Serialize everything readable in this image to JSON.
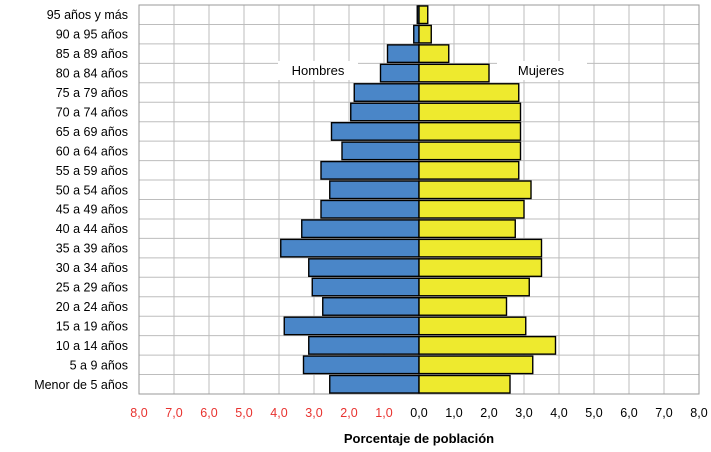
{
  "chart_data": {
    "type": "bar",
    "orientation": "horizontal",
    "layout": "population-pyramid",
    "categories": [
      "95 años y más",
      "90 a 95 años",
      "85 a 89 años",
      "80 a 84 años",
      "75 a 79 años",
      "70 a 74 años",
      "65 a 69 años",
      "60 a 64 años",
      "55 a 59 años",
      "50 a 54 años",
      "45 a 49 años",
      "40 a 44 años",
      "35 a 39 años",
      "30 a 34 años",
      "25 a 29 años",
      "20 a 24 años",
      "15 a 19 años",
      "10 a 14 años",
      "5 a 9 años",
      "Menor de 5 años"
    ],
    "series": [
      {
        "name": "Hombres",
        "side": "left",
        "color": "#4a86c8",
        "values": [
          0.05,
          0.15,
          0.9,
          1.1,
          1.85,
          1.95,
          2.5,
          2.2,
          2.8,
          2.55,
          2.8,
          3.35,
          3.95,
          3.15,
          3.05,
          2.75,
          3.85,
          3.15,
          3.3,
          2.55
        ]
      },
      {
        "name": "Mujeres",
        "side": "right",
        "color": "#eeea2e",
        "values": [
          0.25,
          0.35,
          0.85,
          2.0,
          2.85,
          2.9,
          2.9,
          2.9,
          2.85,
          3.2,
          3.0,
          2.75,
          3.5,
          3.5,
          3.15,
          2.5,
          3.05,
          3.9,
          3.25,
          2.6
        ]
      }
    ],
    "xlabel": "Porcentaje de población",
    "xlim": [
      -8,
      8
    ],
    "xticks": [
      "8,0",
      "7,0",
      "6,0",
      "5,0",
      "4,0",
      "3,0",
      "2,0",
      "1,0",
      "0,0",
      "1,0",
      "2,0",
      "3,0",
      "4,0",
      "5,0",
      "6,0",
      "7,0",
      "8,0"
    ],
    "xtick_colors": {
      "left": "#e8322f",
      "right": "#000000"
    },
    "grid": true,
    "legend": "top, inside plot on each side"
  }
}
